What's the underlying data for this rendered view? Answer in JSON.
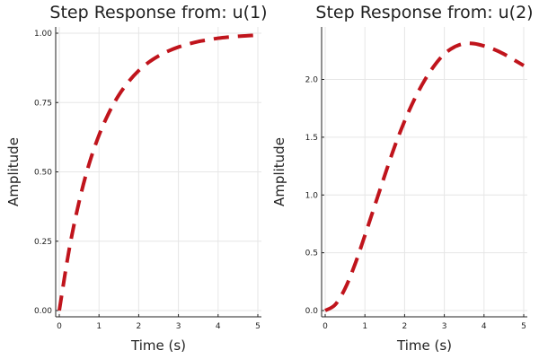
{
  "chart_data": [
    {
      "type": "line",
      "title": "Step Response from: u(1)",
      "xlabel": "Time (s)",
      "ylabel": "Amplitude",
      "xlim": [
        0,
        5
      ],
      "ylim": [
        0,
        1
      ],
      "xticks": [
        0,
        1,
        2,
        3,
        4,
        5
      ],
      "xtick_labels": [
        "0",
        "1",
        "2",
        "3",
        "4",
        "5"
      ],
      "yticks": [
        0,
        0.25,
        0.5,
        0.75,
        1
      ],
      "ytick_labels": [
        "0.00",
        "0.25",
        "0.50",
        "0.75",
        "1.00"
      ],
      "grid": true,
      "color": "#c0141c",
      "line_style": "dashed",
      "series": [
        {
          "x": [
            0,
            0.25,
            0.5,
            0.75,
            1,
            1.25,
            1.5,
            1.75,
            2,
            2.25,
            2.5,
            2.75,
            3,
            3.25,
            3.5,
            3.75,
            4,
            4.25,
            4.5,
            4.75,
            5
          ],
          "values": [
            0,
            0.221,
            0.393,
            0.528,
            0.632,
            0.713,
            0.777,
            0.826,
            0.865,
            0.895,
            0.918,
            0.936,
            0.95,
            0.961,
            0.97,
            0.976,
            0.982,
            0.986,
            0.989,
            0.991,
            0.993
          ]
        }
      ]
    },
    {
      "type": "line",
      "title": "Step Response from: u(2)",
      "xlabel": "Time (s)",
      "ylabel": "Amplitude",
      "xlim": [
        0,
        5
      ],
      "ylim": [
        0,
        2.4
      ],
      "xticks": [
        0,
        1,
        2,
        3,
        4,
        5
      ],
      "xtick_labels": [
        "0",
        "1",
        "2",
        "3",
        "4",
        "5"
      ],
      "yticks": [
        0,
        0.5,
        1,
        1.5,
        2
      ],
      "ytick_labels": [
        "0.0",
        "0.5",
        "1.0",
        "1.5",
        "2.0"
      ],
      "grid": true,
      "color": "#c0141c",
      "line_style": "dashed",
      "series": [
        {
          "x": [
            0,
            0.25,
            0.5,
            0.75,
            1,
            1.25,
            1.5,
            1.75,
            2,
            2.25,
            2.5,
            2.75,
            3,
            3.25,
            3.5,
            3.75,
            4,
            4.25,
            4.5,
            4.75,
            5
          ],
          "values": [
            0,
            0.05,
            0.19,
            0.4,
            0.65,
            0.91,
            1.17,
            1.42,
            1.64,
            1.83,
            1.99,
            2.12,
            2.22,
            2.28,
            2.31,
            2.31,
            2.29,
            2.26,
            2.22,
            2.17,
            2.12
          ]
        }
      ]
    }
  ]
}
